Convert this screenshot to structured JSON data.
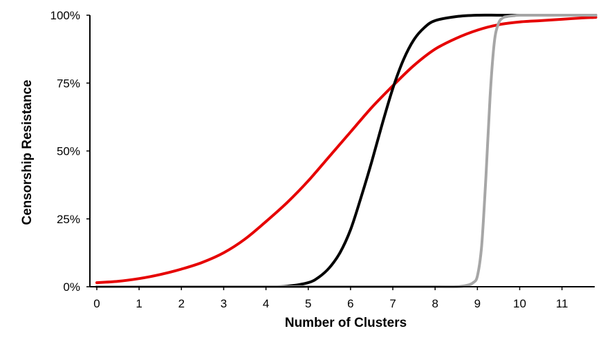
{
  "chart_data": {
    "type": "line",
    "title": "",
    "xlabel": "Number of Clusters",
    "ylabel": "Censorship Resistance",
    "xlim": [
      0,
      11.8
    ],
    "ylim": [
      0,
      100
    ],
    "x_ticks": [
      "0",
      "1",
      "2",
      "3",
      "4",
      "5",
      "6",
      "7",
      "8",
      "9",
      "10",
      "11"
    ],
    "y_ticks": [
      "0%",
      "25%",
      "50%",
      "75%",
      "100%"
    ],
    "grid": false,
    "legend": "none",
    "series": [
      {
        "color": "#e60000",
        "x": [
          0,
          0.5,
          1,
          1.5,
          2,
          2.5,
          3,
          3.5,
          4,
          4.5,
          5,
          5.5,
          6,
          6.5,
          7,
          7.5,
          8,
          8.5,
          9,
          9.5,
          10,
          10.5,
          11,
          11.5,
          11.8
        ],
        "y": [
          1.5,
          2,
          3,
          4.5,
          6.5,
          9,
          12.5,
          17.5,
          24,
          31,
          39,
          48,
          57,
          66,
          74,
          81.5,
          87.5,
          91.5,
          94.5,
          96.5,
          97.5,
          98,
          98.5,
          99,
          99.2
        ]
      },
      {
        "color": "#000000",
        "x": [
          0,
          1,
          2,
          3,
          4,
          4.5,
          5,
          5.25,
          5.5,
          5.75,
          6,
          6.25,
          6.5,
          6.75,
          7,
          7.25,
          7.5,
          7.75,
          8,
          8.5,
          9,
          9.5,
          10,
          11,
          11.8
        ],
        "y": [
          0,
          0,
          0,
          0,
          0,
          0.2,
          1.5,
          3.5,
          7,
          12.5,
          21,
          33,
          46,
          60,
          73,
          83.5,
          91,
          95.5,
          98,
          99.5,
          100,
          100,
          100,
          100,
          100
        ]
      },
      {
        "color": "#a6a6a6",
        "x": [
          0,
          1,
          2,
          3,
          4,
          5,
          6,
          7,
          8,
          8.5,
          8.75,
          8.9,
          9,
          9.1,
          9.2,
          9.3,
          9.4,
          9.5,
          9.6,
          9.7,
          9.85,
          10,
          10.5,
          11,
          11.8
        ],
        "y": [
          0,
          0,
          0,
          0,
          0,
          0,
          0,
          0,
          0,
          0,
          0.5,
          1.5,
          4,
          15,
          40,
          70,
          90,
          97,
          99,
          99.5,
          99.8,
          100,
          100,
          100,
          100
        ]
      }
    ]
  }
}
